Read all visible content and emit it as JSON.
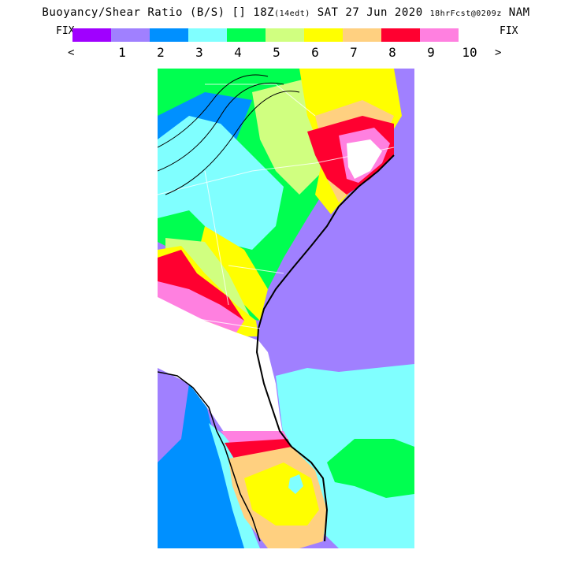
{
  "header": {
    "title_main": "Buoyancy/Shear Ratio (B/S)",
    "title_unit": "[]",
    "time": "18Z",
    "local_time": "(14edt)",
    "date": "SAT 27 Jun 2020",
    "forecast": "18hrFcst@0209z",
    "model": "NAM"
  },
  "legend": {
    "fix_left": "FIX",
    "fix_right": "FIX",
    "prev": "<",
    "next": ">",
    "colors": [
      "#a000ff",
      "#a080ff",
      "#0090ff",
      "#80ffff",
      "#00ff50",
      "#d0ff80",
      "#ffff00",
      "#ffd080",
      "#ff0030",
      "#ff80e0"
    ],
    "ticks": [
      "1",
      "2",
      "3",
      "4",
      "5",
      "6",
      "7",
      "8",
      "9",
      "10"
    ]
  },
  "map": {
    "region": "Southeastern United States",
    "colors": {
      "v0": "#a000ff",
      "v1": "#a080ff",
      "v2": "#0090ff",
      "v3": "#80ffff",
      "v4": "#00ff50",
      "v5": "#d0ff80",
      "v6": "#ffff00",
      "v7": "#ffd080",
      "v8": "#ff0030",
      "v9": "#ff80e0",
      "over": "#ffffff"
    }
  }
}
